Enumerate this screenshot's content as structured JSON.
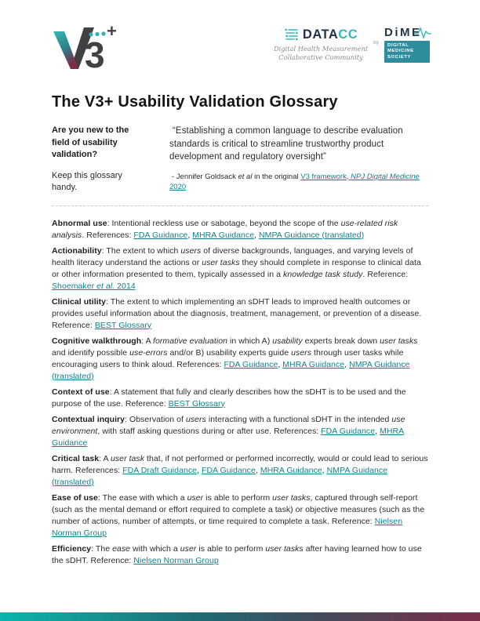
{
  "page": {
    "title": "The V3+ Usability Validation Glossary"
  },
  "colors": {
    "link_teal": "#11818d",
    "logo_teal": "#33b9bd",
    "logo_dark": "#414045",
    "dime_box_teal": "#2e8d9d",
    "footer_gradient": [
      "#0cb5ae",
      "#1f6a74",
      "#414d5c",
      "#7c2d4a"
    ]
  },
  "header": {
    "v3_logo": {
      "glyph_3": "3",
      "glyph_plus": "+"
    },
    "datacc": {
      "name_dark": "DATA",
      "name_teal": "CC",
      "tagline_line1": "Digital Health Measurement",
      "tagline_line2": "Collaborative Community"
    },
    "by_label": "by",
    "dime": {
      "wordmark": "DiME",
      "box_lines": [
        "DIGITAL",
        "MEDICINE",
        "SOCIETY"
      ]
    }
  },
  "intro": {
    "sidebar_heading": "Are you new to the field of usability validation?",
    "sidebar_note": "Keep this glossary handy.",
    "quote": "“Establishing a common language to describe evaluation standards is critical to streamline trustworthy product development and regulatory oversight”",
    "attribution_segments": [
      {
        "t": "- Jennifer Goldsack "
      },
      {
        "t": "et al",
        "i": true
      },
      {
        "t": " in the original "
      },
      {
        "t": "V3 framework, ",
        "link": true
      },
      {
        "t": "NPJ Digital Medicine",
        "link": true,
        "i": true
      },
      {
        "t": " 2020",
        "link": true
      }
    ]
  },
  "glossary": {
    "entries": [
      {
        "term": "Abnormal use",
        "segments": [
          {
            "t": ": Intentional reckless use or sabotage, beyond the scope of the "
          },
          {
            "t": "use-related risk analysis",
            "i": true
          },
          {
            "t": ". References: "
          },
          {
            "t": "FDA Guidance",
            "link": true
          },
          {
            "t": ", "
          },
          {
            "t": "MHRA Guidance",
            "link": true
          },
          {
            "t": ", "
          },
          {
            "t": "NMPA Guidance (translated)",
            "link": true
          }
        ]
      },
      {
        "term": "Actionability",
        "segments": [
          {
            "t": ": The extent to which "
          },
          {
            "t": "users",
            "i": true
          },
          {
            "t": " of diverse backgrounds, languages, and varying levels of health literacy understand the actions or "
          },
          {
            "t": "user tasks",
            "i": true
          },
          {
            "t": " they should complete in response to clinical data or other information presented to them, typically assessed in a "
          },
          {
            "t": "knowledge task study",
            "i": true
          },
          {
            "t": ". Reference: "
          },
          {
            "t": "Shoemaker ",
            "link": true
          },
          {
            "t": "et al.",
            "link": true,
            "i": true
          },
          {
            "t": " 2014",
            "link": true
          }
        ]
      },
      {
        "term": "Clinical utility",
        "segments": [
          {
            "t": ": The extent to which implementing an sDHT leads to improved health outcomes or provides useful information about the diagnosis, treatment, management, or prevention of a disease. Reference: "
          },
          {
            "t": "BEST Glossary",
            "link": true
          }
        ]
      },
      {
        "term": "Cognitive walkthrough",
        "segments": [
          {
            "t": ": A "
          },
          {
            "t": "formative evaluation",
            "i": true
          },
          {
            "t": " in which A) "
          },
          {
            "t": "usability",
            "i": true
          },
          {
            "t": " experts break down "
          },
          {
            "t": "user tasks",
            "i": true
          },
          {
            "t": " and identify possible "
          },
          {
            "t": "use-errors",
            "i": true
          },
          {
            "t": " and/or B) usability experts guide "
          },
          {
            "t": "users",
            "i": true
          },
          {
            "t": " through user tasks while encouraging users to think aloud. References: "
          },
          {
            "t": "FDA Guidance",
            "link": true
          },
          {
            "t": ", "
          },
          {
            "t": "MHRA Guidance",
            "link": true
          },
          {
            "t": ", "
          },
          {
            "t": "NMPA Guidance (translated)",
            "link": true
          }
        ]
      },
      {
        "term": "Context of use",
        "segments": [
          {
            "t": ": A statement that fully and clearly describes how the sDHT is to be used and the purpose of the use. Reference: "
          },
          {
            "t": "BEST Glossary",
            "link": true
          }
        ]
      },
      {
        "term": "Contextual inquiry",
        "segments": [
          {
            "t": ": Observation of "
          },
          {
            "t": "users",
            "i": true
          },
          {
            "t": " interacting with a functional sDHT in the intended "
          },
          {
            "t": "use environment",
            "i": true
          },
          {
            "t": ", with staff asking questions during or after use. References: "
          },
          {
            "t": "FDA Guidance",
            "link": true
          },
          {
            "t": ", "
          },
          {
            "t": "MHRA Guidance",
            "link": true
          }
        ]
      },
      {
        "term": "Critical task",
        "segments": [
          {
            "t": ": A "
          },
          {
            "t": "user task",
            "i": true
          },
          {
            "t": " that, if not performed or performed incorrectly, would or could lead to serious harm. References: "
          },
          {
            "t": "FDA Draft Guidance",
            "link": true
          },
          {
            "t": ", "
          },
          {
            "t": "FDA Guidance",
            "link": true
          },
          {
            "t": ", "
          },
          {
            "t": "MHRA Guidance",
            "link": true
          },
          {
            "t": ", "
          },
          {
            "t": "NMPA Guidance (translated)",
            "link": true
          }
        ]
      },
      {
        "term": "Ease of use",
        "segments": [
          {
            "t": ": The ease with which a "
          },
          {
            "t": "user",
            "i": true
          },
          {
            "t": " is able to perform "
          },
          {
            "t": "user tasks",
            "i": true
          },
          {
            "t": ", captured through self-report (such as the mental demand or effort required to complete a task) or objective measures (such as the number of actions, number of attempts, or time required to complete a task. Reference: "
          },
          {
            "t": "Nielsen Norman Group",
            "link": true
          }
        ]
      },
      {
        "term": "Efficiency",
        "segments": [
          {
            "t": ": The "
          },
          {
            "t": "ease",
            "i": true
          },
          {
            "t": " with which a "
          },
          {
            "t": "user",
            "i": true
          },
          {
            "t": " is able to perform "
          },
          {
            "t": "user tasks",
            "i": true
          },
          {
            "t": " after having learned how to use the sDHT. Reference: "
          },
          {
            "t": "Nielsen Norman Group",
            "link": true
          }
        ]
      }
    ]
  }
}
